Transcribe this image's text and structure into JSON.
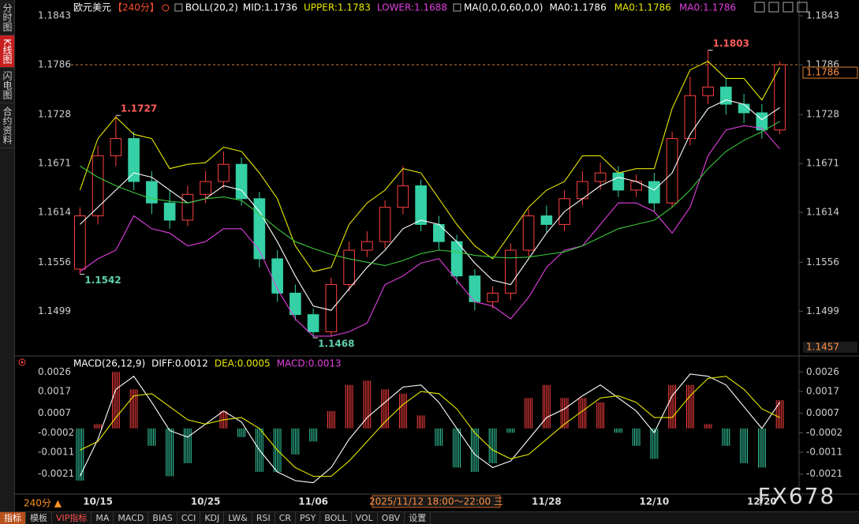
{
  "sidebar": [
    "分时图",
    "K线图",
    "闪电图",
    "合约资料"
  ],
  "sidebar_active": 1,
  "chart_data": [
    {
      "type": "candlestick",
      "title": "欧元美元",
      "period": "【240分】",
      "indicator": "BOLL(20,2)",
      "ma_title": "MA(0,0,0,60,0,0)",
      "ma_entries": [
        {
          "name": "MA0:1.1786",
          "color": "#ffffff"
        },
        {
          "name": "MA0:1.1786",
          "color": "#e8e800"
        },
        {
          "name": "MA0:1.1786",
          "color": "#e040e0"
        }
      ],
      "categories": [
        null,
        "10/15",
        null,
        null,
        null,
        null,
        null,
        "10/25",
        null,
        null,
        null,
        null,
        null,
        "11/06",
        null,
        null,
        null,
        null,
        null,
        null,
        null,
        null,
        null,
        null,
        null,
        null,
        "11/28",
        null,
        null,
        null,
        null,
        null,
        "12/10",
        null,
        null,
        null,
        null,
        null,
        "12/20",
        null
      ],
      "open": [
        1.1548,
        1.161,
        1.168,
        1.17,
        1.165,
        1.1625,
        1.1605,
        1.1635,
        1.165,
        1.167,
        1.163,
        1.156,
        1.152,
        1.1495,
        1.1475,
        1.153,
        1.157,
        1.158,
        1.162,
        1.1645,
        1.16,
        1.158,
        1.154,
        1.151,
        1.152,
        1.157,
        1.161,
        1.16,
        1.163,
        1.165,
        1.166,
        1.164,
        1.165,
        1.1625,
        1.17,
        1.175,
        1.176,
        1.174,
        1.173,
        1.171
      ],
      "high": [
        1.162,
        1.1692,
        1.1727,
        1.1708,
        1.1662,
        1.164,
        1.1645,
        1.1662,
        1.1685,
        1.1678,
        1.1638,
        1.157,
        1.153,
        1.1502,
        1.1538,
        1.158,
        1.1592,
        1.1628,
        1.1668,
        1.1652,
        1.161,
        1.1588,
        1.1548,
        1.1528,
        1.1578,
        1.1618,
        1.1622,
        1.164,
        1.1662,
        1.1672,
        1.1668,
        1.1658,
        1.166,
        1.1708,
        1.1772,
        1.1803,
        1.177,
        1.1752,
        1.174,
        1.179
      ],
      "low": [
        1.1542,
        1.16,
        1.1668,
        1.164,
        1.1612,
        1.1595,
        1.1598,
        1.1625,
        1.1642,
        1.1622,
        1.155,
        1.151,
        1.1488,
        1.1468,
        1.147,
        1.1522,
        1.1562,
        1.1572,
        1.1612,
        1.1592,
        1.157,
        1.153,
        1.15,
        1.1502,
        1.1512,
        1.1562,
        1.159,
        1.1592,
        1.1622,
        1.164,
        1.1632,
        1.1632,
        1.1615,
        1.162,
        1.1692,
        1.174,
        1.1728,
        1.1718,
        1.17,
        1.1705
      ],
      "close": [
        1.161,
        1.168,
        1.17,
        1.165,
        1.1625,
        1.1605,
        1.1635,
        1.165,
        1.167,
        1.163,
        1.156,
        1.152,
        1.1495,
        1.1475,
        1.153,
        1.157,
        1.158,
        1.162,
        1.1645,
        1.16,
        1.158,
        1.154,
        1.151,
        1.152,
        1.157,
        1.161,
        1.16,
        1.163,
        1.165,
        1.166,
        1.164,
        1.165,
        1.1625,
        1.17,
        1.175,
        1.176,
        1.174,
        1.173,
        1.171,
        1.1786
      ],
      "up_color": "#ff4040",
      "down_color": "#35d0a5",
      "series": [
        {
          "name": "MID:1.1736",
          "color": "#ffffff",
          "values": [
            1.16,
            1.162,
            1.164,
            1.166,
            1.1655,
            1.164,
            1.1625,
            1.163,
            1.1645,
            1.164,
            1.1615,
            1.158,
            1.154,
            1.1505,
            1.15,
            1.1525,
            1.155,
            1.157,
            1.1595,
            1.1605,
            1.16,
            1.158,
            1.1555,
            1.1535,
            1.153,
            1.156,
            1.159,
            1.1615,
            1.163,
            1.1645,
            1.1655,
            1.165,
            1.164,
            1.166,
            1.1705,
            1.1735,
            1.1745,
            1.174,
            1.1722,
            1.1736
          ]
        },
        {
          "name": "UPPER:1.1783",
          "color": "#e8e800",
          "values": [
            1.164,
            1.17,
            1.1725,
            1.1705,
            1.17,
            1.1665,
            1.167,
            1.1672,
            1.169,
            1.1685,
            1.166,
            1.163,
            1.1575,
            1.1545,
            1.155,
            1.16,
            1.1625,
            1.164,
            1.1665,
            1.166,
            1.163,
            1.16,
            1.1575,
            1.156,
            1.159,
            1.162,
            1.164,
            1.165,
            1.168,
            1.168,
            1.166,
            1.1665,
            1.1665,
            1.1735,
            1.178,
            1.179,
            1.177,
            1.177,
            1.1745,
            1.1783
          ]
        },
        {
          "name": "LOWER:1.1688",
          "color": "#e040e0",
          "values": [
            1.1545,
            1.156,
            1.157,
            1.161,
            1.1595,
            1.159,
            1.1575,
            1.158,
            1.1595,
            1.1595,
            1.157,
            1.1525,
            1.149,
            1.147,
            1.147,
            1.1475,
            1.1485,
            1.153,
            1.154,
            1.1555,
            1.156,
            1.1535,
            1.151,
            1.1505,
            1.149,
            1.1515,
            1.155,
            1.157,
            1.1575,
            1.16,
            1.1625,
            1.1625,
            1.1615,
            1.159,
            1.162,
            1.168,
            1.171,
            1.1715,
            1.1712,
            1.1688
          ]
        },
        {
          "color": "#3cc83c",
          "values": [
            1.1668,
            1.1655,
            1.1645,
            1.1637,
            1.163,
            1.1627,
            1.1625,
            1.163,
            1.1632,
            1.1628,
            1.1612,
            1.1595,
            1.158,
            1.1572,
            1.1565,
            1.156,
            1.1556,
            1.1552,
            1.1558,
            1.1566,
            1.157,
            1.1568,
            1.1564,
            1.1562,
            1.1561,
            1.1562,
            1.1565,
            1.1568,
            1.1575,
            1.1585,
            1.1595,
            1.16,
            1.1605,
            1.162,
            1.164,
            1.1665,
            1.1685,
            1.1698,
            1.1708,
            1.172
          ]
        }
      ],
      "ylim": [
        1.1457,
        1.1843
      ],
      "yticks": [
        1.1843,
        1.1786,
        1.1728,
        1.1671,
        1.1614,
        1.1556,
        1.1499
      ],
      "grid": false
    },
    {
      "type": "macd",
      "title": "MACD(26,12,9)",
      "series": [
        {
          "name": "DIFF:0.0012",
          "color": "#ffffff",
          "values": [
            -0.0022,
            -0.0005,
            0.0018,
            0.0024,
            0.0012,
            -0.0001,
            -0.0004,
            0.0002,
            0.0008,
            0.0003,
            -0.001,
            -0.002,
            -0.0024,
            -0.0025,
            -0.0018,
            -0.0005,
            0.0005,
            0.0012,
            0.0019,
            0.002,
            0.0012,
            0.0,
            -0.0012,
            -0.0018,
            -0.0015,
            -0.0005,
            0.0005,
            0.0009,
            0.0015,
            0.002,
            0.0014,
            0.0008,
            -0.0002,
            0.0015,
            0.0025,
            0.0024,
            0.002,
            0.001,
            0.0,
            0.0012
          ]
        },
        {
          "name": "DEA:0.0005",
          "color": "#e8e800",
          "values": [
            -0.001,
            -0.0006,
            0.0005,
            0.0015,
            0.0016,
            0.001,
            0.0004,
            0.0002,
            0.0004,
            0.0005,
            0.0,
            -0.001,
            -0.0018,
            -0.0022,
            -0.0022,
            -0.0015,
            -0.0006,
            0.0003,
            0.0011,
            0.0017,
            0.0016,
            0.0009,
            -0.0002,
            -0.001,
            -0.0014,
            -0.0012,
            -0.0005,
            0.0002,
            0.0008,
            0.0014,
            0.0015,
            0.0012,
            0.0005,
            0.0005,
            0.0015,
            0.0023,
            0.0024,
            0.0018,
            0.0009,
            0.0005
          ]
        }
      ],
      "histogram": {
        "name": "MACD:0.0013",
        "color": "#e040e0",
        "up_color": "#ff4040",
        "down_color": "#35d0a5",
        "values": [
          -0.0024,
          0.0002,
          0.0026,
          0.0018,
          -0.0008,
          -0.0022,
          -0.0016,
          0.0,
          0.0008,
          -0.0004,
          -0.002,
          -0.002,
          -0.0012,
          -0.0006,
          0.0008,
          0.002,
          0.0022,
          0.0018,
          0.0016,
          0.0006,
          -0.0008,
          -0.0018,
          -0.002,
          -0.0016,
          -0.0002,
          0.0014,
          0.002,
          0.0014,
          0.0014,
          0.0012,
          -0.0002,
          -0.0008,
          -0.0014,
          0.002,
          0.002,
          0.0002,
          -0.0008,
          -0.0016,
          -0.0018,
          0.0013
        ]
      },
      "ylim": [
        -0.0028,
        0.0029
      ],
      "yticks": [
        0.0026,
        0.0017,
        0.0007,
        -0.0002,
        -0.0011,
        -0.0021
      ],
      "grid": false
    }
  ],
  "status": {
    "period": "240分 ▲",
    "cursor": "2025/11/12 18:00～22:00 三"
  },
  "toolbar": [
    "指标",
    "模板",
    "VIP指标",
    "MA",
    "MACD",
    "BIAS",
    "CCI",
    "KDJ",
    "LW&",
    "RSI",
    "CR",
    "PSY",
    "BOLL",
    "VOL",
    "OBV",
    "设置"
  ],
  "toolbar_active": 0,
  "watermark": "FX678"
}
